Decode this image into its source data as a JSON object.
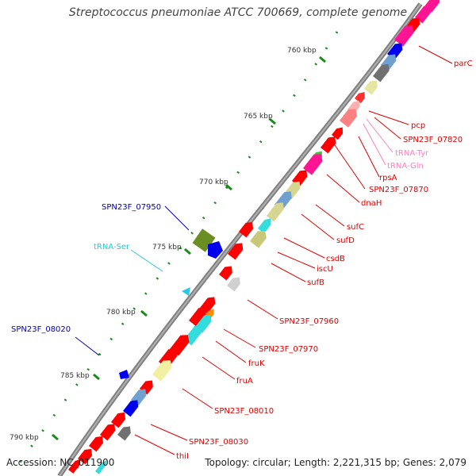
{
  "title": "Streptococcus pneumoniae ATCC 700669, complete genome",
  "footer": {
    "accession": "Accession: NC_011900",
    "summary": "Topology: circular; Length: 2,221,315 bp; Genes: 2,079"
  },
  "colors": {
    "cds": "#ff0000",
    "trna": "#00c8e6",
    "trna_pink": "#ff69b4",
    "blue_label": "#0000b4",
    "cyan_label": "#28c8dc",
    "tick": "#1a8a1a",
    "backbone": "#808080"
  },
  "ticks": [
    "760 kbp",
    "765 kbp",
    "770 kbp",
    "775 kbp",
    "780 kbp",
    "785 kbp",
    "790 kbp"
  ],
  "gene_labels": [
    {
      "name": "parC",
      "color": "red"
    },
    {
      "name": "pcp",
      "color": "red"
    },
    {
      "name": "SPN23F_07820",
      "color": "red"
    },
    {
      "name": "tRNA-Tyr",
      "color": "pink"
    },
    {
      "name": "tRNA-Gln",
      "color": "pink"
    },
    {
      "name": "rpsA",
      "color": "red"
    },
    {
      "name": "SPN23F_07870",
      "color": "red"
    },
    {
      "name": "dnaH",
      "color": "red"
    },
    {
      "name": "sufC",
      "color": "red"
    },
    {
      "name": "sufD",
      "color": "red"
    },
    {
      "name": "csdB",
      "color": "red"
    },
    {
      "name": "iscU",
      "color": "red"
    },
    {
      "name": "sufB",
      "color": "red"
    },
    {
      "name": "SPN23F_07950",
      "color": "blue"
    },
    {
      "name": "tRNA-Ser",
      "color": "cyan"
    },
    {
      "name": "SPN23F_07960",
      "color": "red"
    },
    {
      "name": "SPN23F_07970",
      "color": "red"
    },
    {
      "name": "fruK",
      "color": "red"
    },
    {
      "name": "fruA",
      "color": "red"
    },
    {
      "name": "SPN23F_08010",
      "color": "red"
    },
    {
      "name": "SPN23F_08020",
      "color": "blue"
    },
    {
      "name": "SPN23F_08030",
      "color": "red"
    },
    {
      "name": "thiI",
      "color": "red"
    }
  ]
}
